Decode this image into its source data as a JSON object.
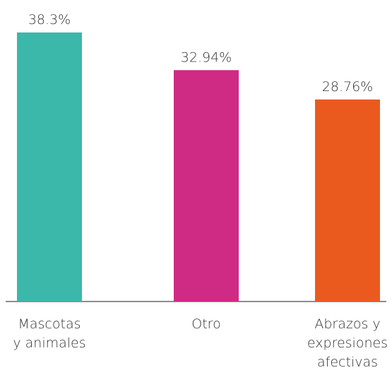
{
  "chart_data": {
    "type": "bar",
    "categories": [
      [
        "Mascotas",
        "y animales"
      ],
      [
        "Otro"
      ],
      [
        "Abrazos y",
        "expresiones",
        "afectivas"
      ]
    ],
    "values": [
      38.3,
      32.94,
      28.76
    ],
    "value_labels": [
      "38.3%",
      "32.94%",
      "28.76%"
    ],
    "colors": [
      "#3bb8aa",
      "#cf2a84",
      "#ea5a1f"
    ],
    "ylim": [
      0,
      38.3
    ],
    "grid": false,
    "legend": "none",
    "title": "",
    "xlabel": "",
    "ylabel": ""
  }
}
